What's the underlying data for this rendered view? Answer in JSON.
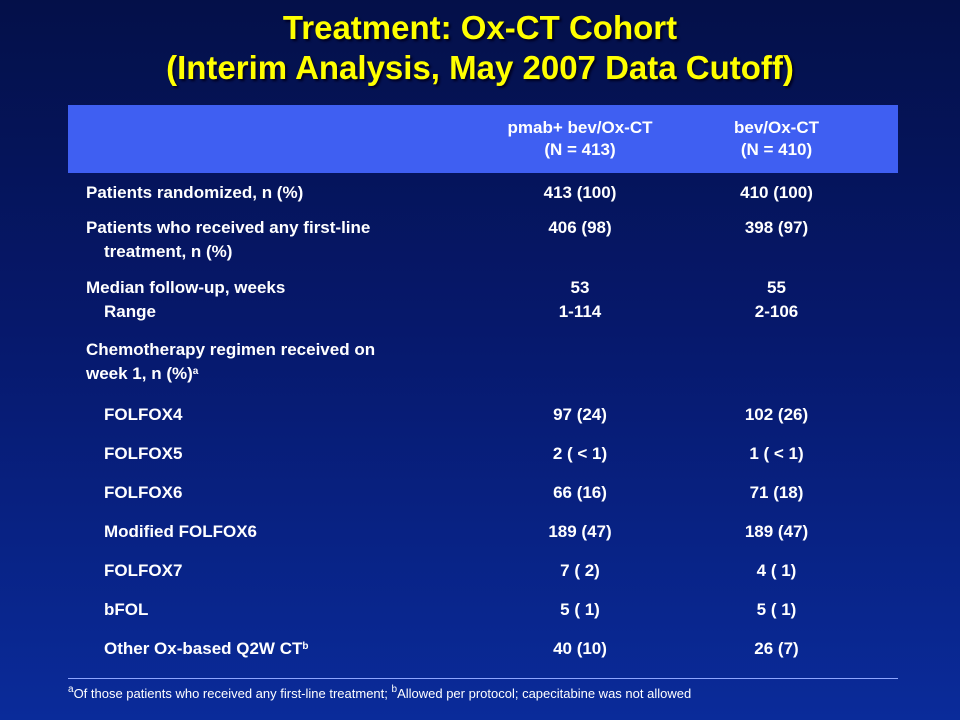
{
  "title": {
    "line1": "Treatment: Ox-CT Cohort",
    "line2": "(Interim Analysis, May 2007 Data Cutoff)"
  },
  "header": {
    "col_a_line1": "pmab+ bev/Ox-CT",
    "col_a_line2": "(N = 413)",
    "col_b_line1": "bev/Ox-CT",
    "col_b_line2": "(N = 410)"
  },
  "rows": {
    "randomized": {
      "label": "Patients randomized, n (%)",
      "a": "413 (100)",
      "b": "410 (100)"
    },
    "received": {
      "label1": "Patients who received any first-line",
      "label2": "treatment, n (%)",
      "a": "406 (98)",
      "b": "398 (97)"
    },
    "followup": {
      "label1": "Median follow-up, weeks",
      "label2": "Range",
      "a1": "53",
      "a2": "1-114",
      "b1": "55",
      "b2": "2-106"
    },
    "chemo": {
      "label1": "Chemotherapy regimen received on",
      "label2": "week 1, n (%)",
      "sup": "a"
    },
    "regimens": [
      {
        "label": "FOLFOX4",
        "a": "97 (24)",
        "b": "102 (26)"
      },
      {
        "label": "FOLFOX5",
        "a": "2 ( < 1)",
        "b": "1 ( < 1)"
      },
      {
        "label": "FOLFOX6",
        "a": "66 (16)",
        "b": "71 (18)"
      },
      {
        "label": "Modified FOLFOX6",
        "a": "189 (47)",
        "b": "189 (47)"
      },
      {
        "label": "FOLFOX7",
        "a": "7 ( 2)",
        "b": "4 ( 1)"
      },
      {
        "label": "bFOL",
        "a": "5 ( 1)",
        "b": "5 ( 1)"
      },
      {
        "label": "Other Ox-based Q2W CT",
        "sup": "b",
        "a": "40 (10)",
        "b": "26 (7)"
      }
    ]
  },
  "footnote": {
    "sup_a": "a",
    "text_a": "Of those patients who received any first-line treatment; ",
    "sup_b": "b",
    "text_b": "Allowed per protocol; capecitabine was not allowed"
  }
}
